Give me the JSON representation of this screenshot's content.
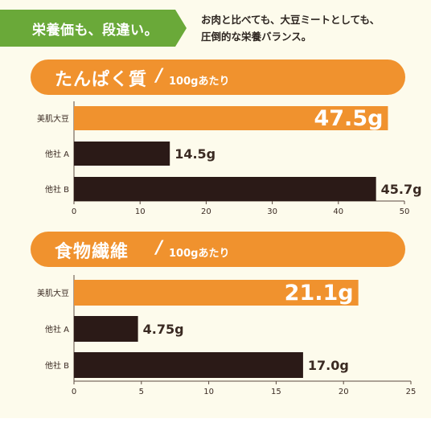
{
  "banner": {
    "label": "栄養価も、段違い。",
    "color": "#6aa939"
  },
  "intro": {
    "lines": [
      "お肉と比べても、大豆ミートとしても、",
      "圧倒的な栄養バランス。"
    ]
  },
  "colors": {
    "highlight": "#f0922e",
    "competitor": "#2b1a17",
    "text": "#3a2a22"
  },
  "chart_data": [
    {
      "type": "bar",
      "orientation": "horizontal",
      "title": "たんぱく質",
      "unit_note": "100gあたり",
      "categories": [
        "美肌大豆",
        "他社 A",
        "他社 B"
      ],
      "values": [
        47.5,
        14.5,
        45.7
      ],
      "value_labels": [
        "47.5g",
        "14.5g",
        "45.7g"
      ],
      "xlim": [
        0,
        50
      ],
      "ticks": [
        0,
        10,
        20,
        30,
        40,
        50
      ],
      "grid": false
    },
    {
      "type": "bar",
      "orientation": "horizontal",
      "title": "食物繊維",
      "unit_note": "100gあたり",
      "categories": [
        "美肌大豆",
        "他社 A",
        "他社 B"
      ],
      "values": [
        21.1,
        4.75,
        17.0
      ],
      "value_labels": [
        "21.1g",
        "4.75g",
        "17.0g"
      ],
      "xlim": [
        0,
        25
      ],
      "ticks": [
        0,
        5,
        10,
        15,
        20,
        25
      ],
      "grid": false
    }
  ]
}
